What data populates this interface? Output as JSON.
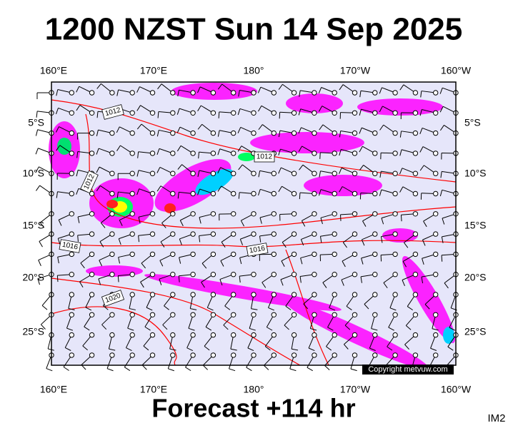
{
  "header": {
    "title": "1200 NZST Sun 14 Sep 2025"
  },
  "axes": {
    "top": [
      "160°E",
      "170°E",
      "180°",
      "170°W",
      "160°W"
    ],
    "bottom": [
      "160°E",
      "170°E",
      "180°",
      "170°W",
      "160°W"
    ],
    "left": [
      "5°S",
      "10°S",
      "15°S",
      "20°S",
      "25°S"
    ],
    "right": [
      "5°S",
      "10°S",
      "15°S",
      "20°S",
      "25°S"
    ]
  },
  "isobar_labels": [
    "1012",
    "1012",
    "1012",
    "1016",
    "1016",
    "1020"
  ],
  "copyright": "Copyright metvuw.com",
  "footer": {
    "forecast": "Forecast +114 hr",
    "code": "IM2"
  }
}
